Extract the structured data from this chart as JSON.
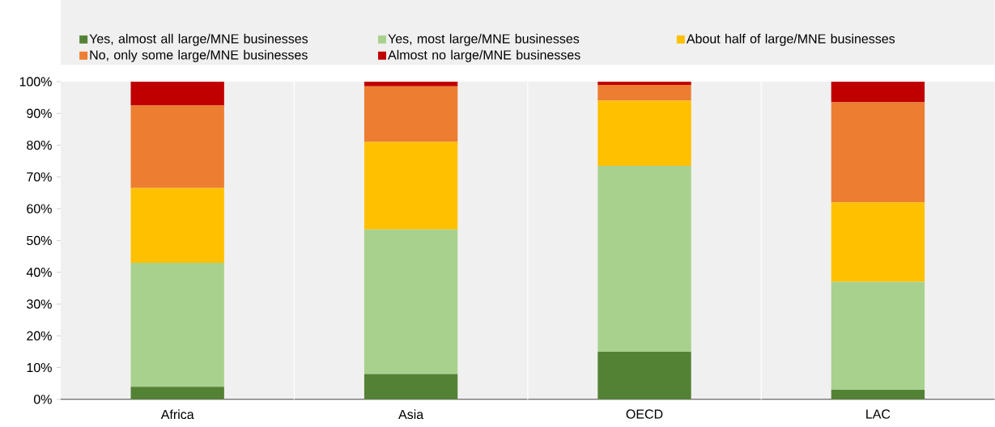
{
  "chart_data": {
    "type": "bar",
    "stacked": true,
    "categories": [
      "Africa",
      "Asia",
      "OECD",
      "LAC"
    ],
    "series": [
      {
        "name": "Yes, almost all large/MNE businesses",
        "color": "#548235",
        "values": [
          4,
          8,
          15,
          3
        ]
      },
      {
        "name": "Yes, most large/MNE businesses",
        "color": "#a9d18e",
        "values": [
          39,
          45.5,
          58.5,
          34
        ]
      },
      {
        "name": "About half of large/MNE businesses",
        "color": "#ffc000",
        "values": [
          23.5,
          27.5,
          20.5,
          25
        ]
      },
      {
        "name": "No, only some large/MNE businesses",
        "color": "#ed7d31",
        "values": [
          26,
          17.5,
          5,
          31.5
        ]
      },
      {
        "name": "Almost no large/MNE businesses",
        "color": "#c00000",
        "values": [
          7.5,
          1.5,
          1,
          6.5
        ]
      }
    ],
    "ylim": [
      0,
      100
    ],
    "yticks": [
      {
        "value": 0,
        "label": "0%"
      },
      {
        "value": 10,
        "label": "10%"
      },
      {
        "value": 20,
        "label": "20%"
      },
      {
        "value": 30,
        "label": "30%"
      },
      {
        "value": 40,
        "label": "40%"
      },
      {
        "value": 50,
        "label": "50%"
      },
      {
        "value": 60,
        "label": "60%"
      },
      {
        "value": 70,
        "label": "70%"
      },
      {
        "value": 80,
        "label": "80%"
      },
      {
        "value": 90,
        "label": "90%"
      },
      {
        "value": 100,
        "label": "100%"
      }
    ],
    "grid": "x",
    "legend": "top"
  }
}
